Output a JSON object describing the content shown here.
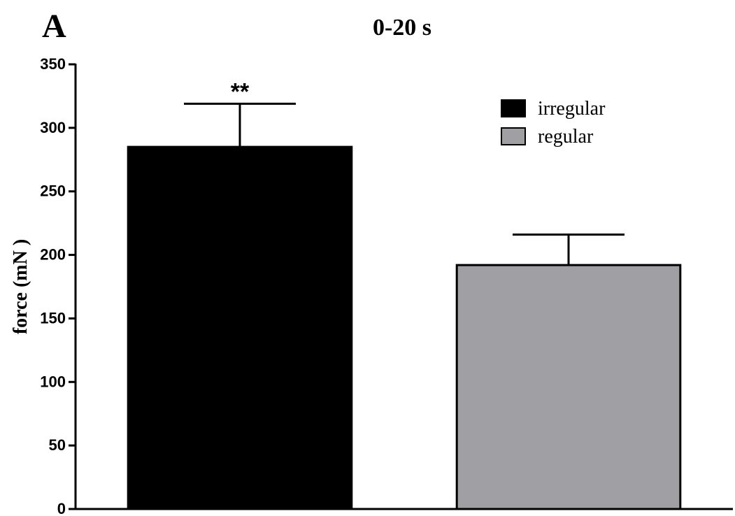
{
  "panel_label": "A",
  "chart_data": {
    "type": "bar",
    "title": "0-20 s",
    "xlabel": "",
    "ylabel": "force (mN )",
    "ylim": [
      0,
      350
    ],
    "yticks": [
      0,
      50,
      100,
      150,
      200,
      250,
      300,
      350
    ],
    "grid": false,
    "legend_position": "top-right",
    "series": [
      {
        "name": "irregular",
        "value": 285,
        "error": 34,
        "color": "#000000",
        "annotation": "**"
      },
      {
        "name": "regular",
        "value": 192,
        "error": 24,
        "color": "#a0a0a4",
        "annotation": ""
      }
    ]
  }
}
